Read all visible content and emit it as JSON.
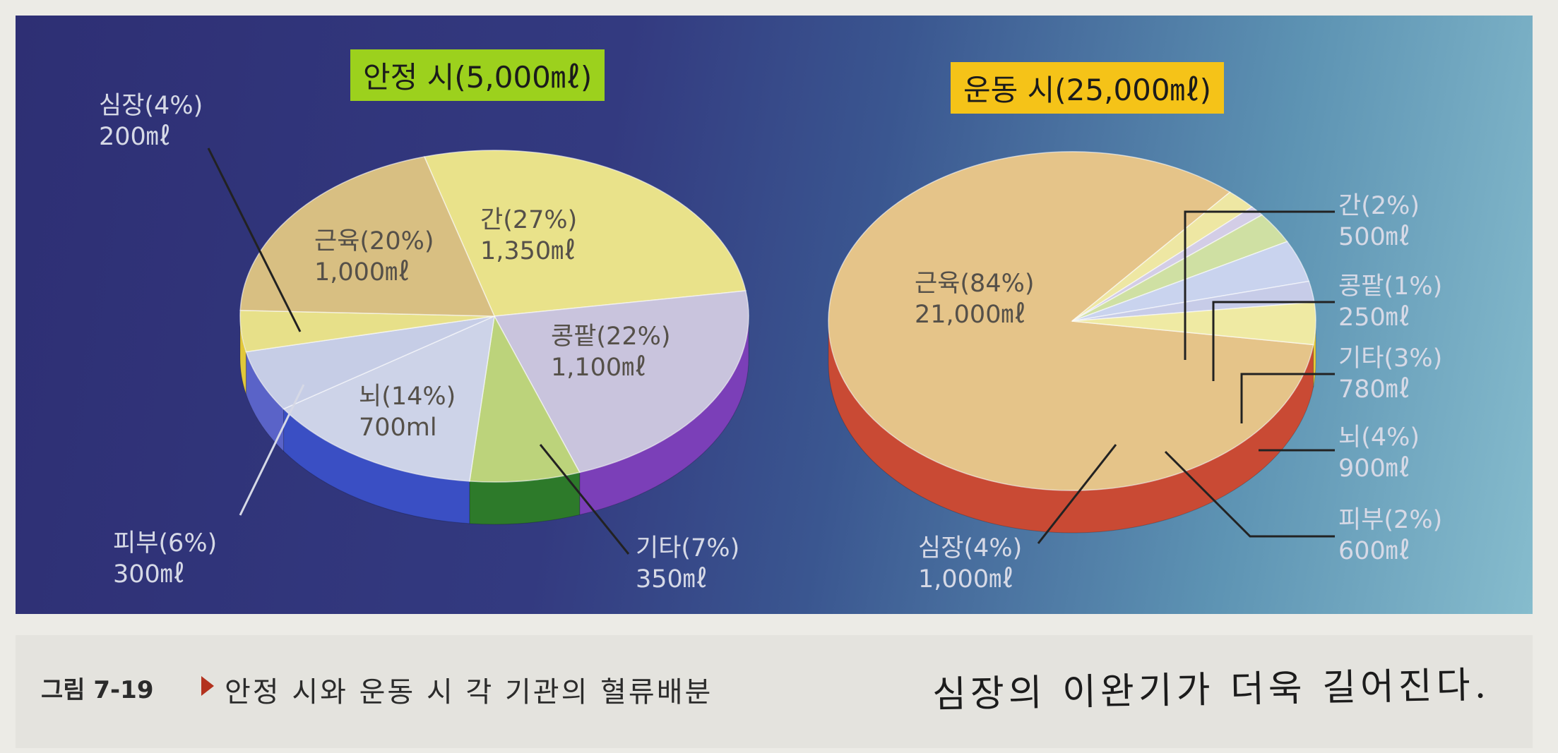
{
  "chart_data": [
    {
      "type": "pie",
      "title": "안정 시(5,000㎖)",
      "slices": [
        {
          "label": "간",
          "percent": 27,
          "text": "간(27%)",
          "value": "1,350㎖",
          "color": "#e9e28a"
        },
        {
          "label": "콩팥",
          "percent": 22,
          "text": "콩팥(22%)",
          "value": "1,100㎖",
          "color": "#c9c4dd"
        },
        {
          "label": "기타",
          "percent": 7,
          "text": "기타(7%)",
          "value": "350㎖",
          "color": "#bcd37b"
        },
        {
          "label": "뇌",
          "percent": 14,
          "text": "뇌(14%)",
          "value": "700ml",
          "color": "#cdd3e8"
        },
        {
          "label": "피부",
          "percent": 6,
          "text": "피부(6%)",
          "value": "300㎖",
          "color": "#c6cde6"
        },
        {
          "label": "심장",
          "percent": 4,
          "text": "심장(4%)",
          "value": "200㎖",
          "color": "#e7e089"
        },
        {
          "label": "근육",
          "percent": 20,
          "text": "근육(20%)",
          "value": "1,000㎖",
          "color": "#d8bf82"
        }
      ]
    },
    {
      "type": "pie",
      "title": "운동 시(25,000㎖)",
      "slices": [
        {
          "label": "근육",
          "percent": 84,
          "text": "근육(84%)",
          "value": "21,000㎖",
          "color": "#e5c489"
        },
        {
          "label": "간",
          "percent": 2,
          "text": "간(2%)",
          "value": "500㎖",
          "color": "#eee7a3"
        },
        {
          "label": "콩팥",
          "percent": 1,
          "text": "콩팥(1%)",
          "value": "250㎖",
          "color": "#d3cde6"
        },
        {
          "label": "기타",
          "percent": 3,
          "text": "기타(3%)",
          "value": "780㎖",
          "color": "#cfe0a3"
        },
        {
          "label": "뇌",
          "percent": 4,
          "text": "뇌(4%)",
          "value": "900㎖",
          "color": "#c9d3ee"
        },
        {
          "label": "피부",
          "percent": 2,
          "text": "피부(2%)",
          "value": "600㎖",
          "color": "#c7cce8"
        },
        {
          "label": "심장",
          "percent": 4,
          "text": "심장(4%)",
          "value": "1,000㎖",
          "color": "#efeaa3"
        }
      ]
    }
  ],
  "caption": {
    "figure_label": "그림 7-19",
    "text": "안정 시와 운동 시 각 기관의 혈류배분"
  },
  "handwritten_note": "심장의 이완기가 더욱 길어진다."
}
